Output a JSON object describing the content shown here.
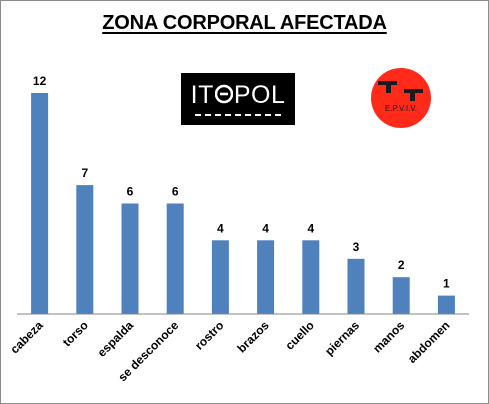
{
  "colors": {
    "bar": "#4F81BD",
    "axis": "#868686",
    "logo_red": "#FF2A1A"
  },
  "logos": {
    "itepol": {
      "text_left": "IT",
      "text_right": "POL",
      "icon": "itepol-e-icon"
    },
    "epviv": {
      "text": "E.P.V.I.V.",
      "icon": "pistol-icon"
    }
  },
  "chart_data": {
    "type": "bar",
    "title": "ZONA CORPORAL AFECTADA",
    "xlabel": "",
    "ylabel": "",
    "categories": [
      "cabeza",
      "torso",
      "espalda",
      "se desconoce",
      "rostro",
      "brazos",
      "cuello",
      "piernas",
      "manos",
      "abdomen"
    ],
    "values": [
      12,
      7,
      6,
      6,
      4,
      4,
      4,
      3,
      2,
      1
    ],
    "ylim": [
      0,
      12
    ],
    "grid": false,
    "legend": "none",
    "data_labels": true
  }
}
